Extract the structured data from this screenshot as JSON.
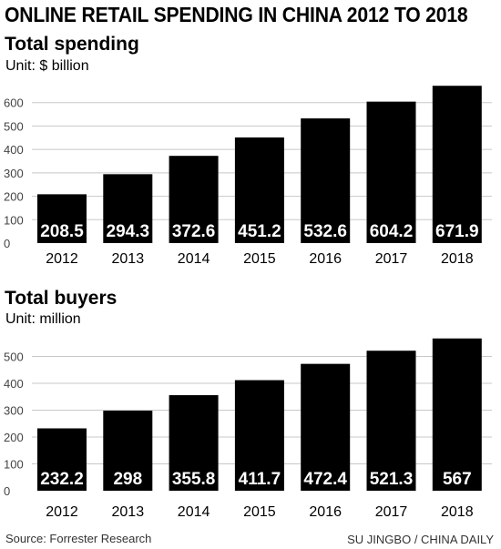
{
  "title": "ONLINE RETAIL SPENDING IN CHINA 2012 TO 2018",
  "source": "Source: Forrester Research",
  "credit": "SU JINGBO / CHINA DAILY",
  "colors": {
    "bar": "#000000",
    "grid": "#c8c8c8",
    "bar_label": "#ffffff",
    "text": "#000000"
  },
  "chart_data": [
    {
      "type": "bar",
      "title": "Total spending",
      "unit_label": "Unit: $ billion",
      "categories": [
        "2012",
        "2013",
        "2014",
        "2015",
        "2016",
        "2017",
        "2018"
      ],
      "values": [
        208.5,
        294.3,
        372.6,
        451.2,
        532.6,
        604.2,
        671.9
      ],
      "value_labels": [
        "208.5",
        "294.3",
        "372.6",
        "451.2",
        "532.6",
        "604.2",
        "671.9"
      ],
      "yticks": [
        0,
        100,
        200,
        300,
        400,
        500,
        600
      ],
      "ylim": [
        0,
        700
      ],
      "grid": true
    },
    {
      "type": "bar",
      "title": "Total buyers",
      "unit_label": "Unit: million",
      "categories": [
        "2012",
        "2013",
        "2014",
        "2015",
        "2016",
        "2017",
        "2018"
      ],
      "values": [
        232.2,
        298,
        355.8,
        411.7,
        472.4,
        521.3,
        567
      ],
      "value_labels": [
        "232.2",
        "298",
        "355.8",
        "411.7",
        "472.4",
        "521.3",
        "567"
      ],
      "yticks": [
        0,
        100,
        200,
        300,
        400,
        500
      ],
      "ylim": [
        0,
        600
      ],
      "grid": true
    }
  ]
}
